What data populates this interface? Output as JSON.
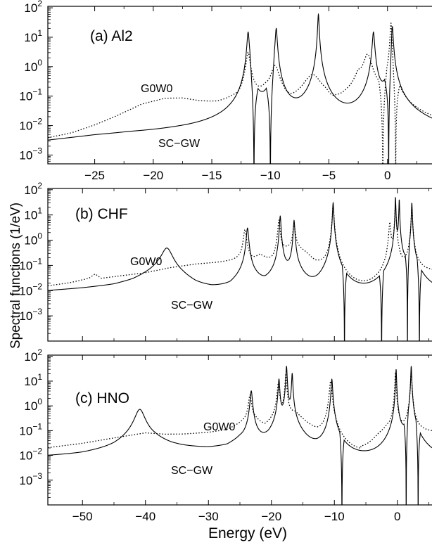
{
  "chart_data": [
    {
      "type": "line",
      "panel_label": "(a) Al2",
      "xlim": [
        -29,
        3.8
      ],
      "ylim_log10": [
        -3.3,
        2.05
      ],
      "y_scale": "log",
      "x_ticks": [
        -25,
        -20,
        -15,
        -10,
        -5,
        0
      ],
      "x_tick_labels": [
        "−25",
        "−20",
        "−15",
        "−10",
        "−5",
        "0"
      ],
      "y_ticks": [
        {
          "exp": "2"
        },
        {
          "exp": "1"
        },
        {
          "exp": "0"
        },
        {
          "exp": "−1"
        },
        {
          "exp": "−2"
        },
        {
          "exp": "−3"
        }
      ],
      "annotations": [
        "G0W0",
        "SC−GW"
      ],
      "series": [
        {
          "name": "SC−GW",
          "style": "solid",
          "peaks": [
            {
              "x": -11.9,
              "y": 15,
              "w": 0.08
            },
            {
              "x": -9.5,
              "y": 20,
              "w": 0.07
            },
            {
              "x": -5.9,
              "y": 60,
              "w": 0.05
            },
            {
              "x": -1.2,
              "y": 15,
              "w": 0.08
            },
            {
              "x": 0.4,
              "y": 30,
              "w": 0.06
            }
          ],
          "background": [
            [
              -29,
              0.0021
            ],
            [
              -27,
              0.0026
            ],
            [
              -25,
              0.0032
            ],
            [
              -22,
              0.0038
            ],
            [
              -18,
              0.004
            ],
            [
              -15,
              0.0038
            ],
            [
              -13.5,
              0.0035
            ],
            [
              -13,
              0.003
            ],
            [
              -12.3,
              0.0015
            ],
            [
              -11.6,
              0.0008
            ],
            [
              -10.5,
              0.0008
            ],
            [
              -9.8,
              0.0008
            ],
            [
              -9.2,
              0.001
            ],
            [
              -8,
              0.003
            ],
            [
              -7,
              0.002
            ],
            [
              -6.4,
              0.0015
            ],
            [
              -5.6,
              0.0015
            ],
            [
              -5,
              0.003
            ],
            [
              -4,
              0.003
            ],
            [
              -3,
              0.0025
            ],
            [
              -2,
              0.0015
            ],
            [
              -1.6,
              0.0008
            ],
            [
              -0.8,
              0.0006
            ],
            [
              0,
              0.0006
            ],
            [
              0.8,
              0.0008
            ],
            [
              1.5,
              0.003
            ],
            [
              3,
              0.0025
            ],
            [
              3.8,
              0.0022
            ]
          ],
          "zeros": [
            -11.4,
            -10.0,
            0.1
          ]
        },
        {
          "name": "G0W0",
          "style": "dotted",
          "peaks": [
            {
              "x": -11.9,
              "y": 3,
              "w": 0.15
            },
            {
              "x": -9.6,
              "y": 1.0,
              "w": 0.3
            },
            {
              "x": -6.4,
              "y": 0.5,
              "w": 0.7
            },
            {
              "x": -1.7,
              "y": 2.5,
              "w": 0.3
            },
            {
              "x": 0.3,
              "y": 30,
              "w": 0.06
            }
          ],
          "background": [
            [
              -29,
              0.0025
            ],
            [
              -27,
              0.004
            ],
            [
              -25,
              0.0085
            ],
            [
              -23,
              0.02
            ],
            [
              -21,
              0.05
            ],
            [
              -19,
              0.08
            ],
            [
              -17.5,
              0.08
            ],
            [
              -16,
              0.06
            ],
            [
              -14.5,
              0.05
            ],
            [
              -13.2,
              0.06
            ],
            [
              -12.6,
              0.04
            ],
            [
              -11,
              0.08
            ],
            [
              -10.4,
              0.12
            ],
            [
              -9,
              0.04
            ],
            [
              -8.3,
              0.003
            ],
            [
              -7.8,
              0.01
            ],
            [
              -5.2,
              0.03
            ],
            [
              -4.8,
              0.0015
            ],
            [
              -4.4,
              0.02
            ],
            [
              -3,
              0.15
            ],
            [
              -2.5,
              0.5
            ],
            [
              -1,
              0.05
            ],
            [
              -0.4,
              0.003
            ],
            [
              0,
              0.002
            ],
            [
              0.6,
              0.003
            ],
            [
              0.8,
              0.003
            ],
            [
              1.5,
              0.003
            ],
            [
              3.8,
              0.003
            ]
          ],
          "zeros": [
            -0.4,
            0.7
          ]
        }
      ]
    },
    {
      "type": "line",
      "panel_label": "(b) CHF",
      "xlim": [
        -55.5,
        5.5
      ],
      "ylim_log10": [
        -4.0,
        2.05
      ],
      "y_scale": "log",
      "x_ticks": [],
      "x_tick_labels": [],
      "y_ticks": [
        {
          "exp": "2"
        },
        {
          "exp": "1"
        },
        {
          "exp": "0"
        },
        {
          "exp": "−1"
        },
        {
          "exp": "−2"
        },
        {
          "exp": "−3"
        }
      ],
      "annotations": [
        "G0W0",
        "SC−GW"
      ],
      "series": [
        {
          "name": "SC−GW",
          "style": "solid",
          "peaks": [
            {
              "x": -36.6,
              "y": 0.45,
              "w": 0.8
            },
            {
              "x": -23.8,
              "y": 3,
              "w": 0.15
            },
            {
              "x": -18.6,
              "y": 9,
              "w": 0.1
            },
            {
              "x": -16.4,
              "y": 6,
              "w": 0.1
            },
            {
              "x": -10.2,
              "y": 30,
              "w": 0.08
            },
            {
              "x": -0.3,
              "y": 50,
              "w": 0.05
            },
            {
              "x": 0.3,
              "y": 40,
              "w": 0.05
            },
            {
              "x": 2.3,
              "y": 30,
              "w": 0.06
            }
          ],
          "background": [
            [
              -55.5,
              0.009
            ],
            [
              -50,
              0.011
            ],
            [
              -45,
              0.014
            ],
            [
              -42,
              0.02
            ],
            [
              -38,
              0.05
            ],
            [
              -34,
              0.02
            ],
            [
              -32,
              0.01
            ],
            [
              -29.5,
              0.0075
            ],
            [
              -26.5,
              0.009
            ],
            [
              -24.6,
              0.03
            ],
            [
              -22.5,
              0.02
            ],
            [
              -21,
              0.009
            ],
            [
              -19.3,
              0.02
            ],
            [
              -17.6,
              0.03
            ],
            [
              -15.5,
              0.03
            ],
            [
              -14,
              0.008
            ],
            [
              -12.5,
              0.002
            ],
            [
              -11,
              0.008
            ],
            [
              -9.7,
              0.008
            ],
            [
              -9,
              0.003
            ],
            [
              -8.6,
              0.0002
            ],
            [
              -2.8,
              0.0002
            ],
            [
              -1.8,
              0.0015
            ],
            [
              -0.6,
              0.01
            ],
            [
              0,
              0.005
            ],
            [
              0.9,
              0.003
            ],
            [
              1.5,
              0.004
            ],
            [
              2.8,
              0.003
            ],
            [
              3.4,
              0.002
            ],
            [
              5.5,
              0.002
            ]
          ],
          "zeros": [
            -8.4,
            -2.5,
            1.6,
            3.5
          ]
        },
        {
          "name": "G0W0",
          "style": "dotted",
          "peaks": [
            {
              "x": -24.2,
              "y": 2.5,
              "w": 0.2
            },
            {
              "x": -18.8,
              "y": 6,
              "w": 0.15
            },
            {
              "x": -16.4,
              "y": 4,
              "w": 0.15
            },
            {
              "x": -10.2,
              "y": 25,
              "w": 0.1
            },
            {
              "x": -1.2,
              "y": 5,
              "w": 0.12
            },
            {
              "x": -0.3,
              "y": 30,
              "w": 0.07
            },
            {
              "x": 2.3,
              "y": 20,
              "w": 0.08
            }
          ],
          "background": [
            [
              -55.5,
              0.015
            ],
            [
              -52,
              0.02
            ],
            [
              -49,
              0.03
            ],
            [
              -48,
              0.045
            ],
            [
              -47,
              0.03
            ],
            [
              -45,
              0.035
            ],
            [
              -40,
              0.05
            ],
            [
              -36,
              0.08
            ],
            [
              -32,
              0.11
            ],
            [
              -28,
              0.13
            ],
            [
              -25,
              0.16
            ],
            [
              -23,
              0.15
            ],
            [
              -21.8,
              0.25
            ],
            [
              -21,
              0.18
            ],
            [
              -19.5,
              0.1
            ],
            [
              -18,
              0.4
            ],
            [
              -16,
              0.55
            ],
            [
              -14.5,
              0.3
            ],
            [
              -13,
              0.12
            ],
            [
              -11.5,
              0.08
            ],
            [
              -10,
              0.05
            ],
            [
              -9.6,
              0.01
            ],
            [
              -9.3,
              0.001
            ],
            [
              -8.8,
              0.0002
            ],
            [
              -2.2,
              0.0002
            ],
            [
              -1.8,
              0.001
            ],
            [
              -1.6,
              0.05
            ],
            [
              -0.8,
              0.1
            ],
            [
              0.5,
              0.02
            ],
            [
              1.5,
              0.05
            ],
            [
              3,
              0.05
            ],
            [
              3.8,
              0.05
            ],
            [
              5.5,
              0.05
            ]
          ],
          "zeros": []
        }
      ]
    },
    {
      "type": "line",
      "panel_label": "(c) HNO",
      "xlim": [
        -55.5,
        5.5
      ],
      "ylim_log10": [
        -4.0,
        2.05
      ],
      "y_scale": "log",
      "x_ticks": [
        -50,
        -40,
        -30,
        -20,
        -10,
        0
      ],
      "x_tick_labels": [
        "−50",
        "−40",
        "−30",
        "−20",
        "−10",
        "0"
      ],
      "y_ticks": [
        {
          "exp": "2"
        },
        {
          "exp": "1"
        },
        {
          "exp": "0"
        },
        {
          "exp": "−1"
        },
        {
          "exp": "−2"
        },
        {
          "exp": "−3"
        }
      ],
      "annotations": [
        "G0W0",
        "SC−GW"
      ],
      "series": [
        {
          "name": "SC−GW",
          "style": "solid",
          "peaks": [
            {
              "x": -40.9,
              "y": 0.7,
              "w": 0.7
            },
            {
              "x": -23.2,
              "y": 4,
              "w": 0.15
            },
            {
              "x": -18.8,
              "y": 12,
              "w": 0.1
            },
            {
              "x": -17.6,
              "y": 40,
              "w": 0.08
            },
            {
              "x": -16.7,
              "y": 20,
              "w": 0.08
            },
            {
              "x": -10.4,
              "y": 12,
              "w": 0.1
            },
            {
              "x": -0.2,
              "y": 30,
              "w": 0.06
            },
            {
              "x": 2.2,
              "y": 40,
              "w": 0.06
            }
          ],
          "background": [
            [
              -55.5,
              0.008
            ],
            [
              -50,
              0.009
            ],
            [
              -45,
              0.013
            ],
            [
              -43,
              0.02
            ],
            [
              -38.5,
              0.03
            ],
            [
              -36,
              0.02
            ],
            [
              -34,
              0.017
            ],
            [
              -30,
              0.014
            ],
            [
              -27,
              0.015
            ],
            [
              -25,
              0.03
            ],
            [
              -22,
              0.02
            ],
            [
              -20.5,
              0.01
            ],
            [
              -19.4,
              0.03
            ],
            [
              -18.2,
              0.04
            ],
            [
              -17.2,
              0.04
            ],
            [
              -16,
              0.03
            ],
            [
              -14,
              0.004
            ],
            [
              -12.8,
              0.002
            ],
            [
              -11.5,
              0.006
            ],
            [
              -10,
              0.01
            ],
            [
              -9.4,
              0.001
            ],
            [
              -9,
              0.0002
            ],
            [
              -3.4,
              0.0002
            ],
            [
              -2.8,
              0.0005
            ],
            [
              -1.2,
              0.008
            ],
            [
              0.5,
              0.01
            ],
            [
              1.2,
              0.003
            ],
            [
              1.6,
              0.002
            ],
            [
              2.8,
              0.002
            ],
            [
              3.4,
              0.002
            ],
            [
              5.5,
              0.002
            ]
          ],
          "zeros": [
            -8.8,
            1.4,
            3.3
          ]
        },
        {
          "name": "G0W0",
          "style": "dotted",
          "peaks": [
            {
              "x": -23.4,
              "y": 2.5,
              "w": 0.2
            },
            {
              "x": -18.9,
              "y": 8,
              "w": 0.15
            },
            {
              "x": -17.7,
              "y": 20,
              "w": 0.1
            },
            {
              "x": -10.6,
              "y": 10,
              "w": 0.15
            },
            {
              "x": -0.3,
              "y": 20,
              "w": 0.08
            },
            {
              "x": 2.2,
              "y": 25,
              "w": 0.08
            }
          ],
          "background": [
            [
              -55.5,
              0.02
            ],
            [
              -50,
              0.03
            ],
            [
              -46,
              0.045
            ],
            [
              -43,
              0.06
            ],
            [
              -40,
              0.08
            ],
            [
              -37,
              0.07
            ],
            [
              -34,
              0.07
            ],
            [
              -30,
              0.08
            ],
            [
              -27,
              0.1
            ],
            [
              -24.5,
              0.2
            ],
            [
              -22.5,
              0.25
            ],
            [
              -21,
              0.12
            ],
            [
              -19.8,
              0.2
            ],
            [
              -18.3,
              0.3
            ],
            [
              -16.2,
              0.5
            ],
            [
              -14.5,
              0.2
            ],
            [
              -12.5,
              0.07
            ],
            [
              -11.2,
              0.05
            ],
            [
              -10,
              0.03
            ],
            [
              -9.6,
              0.005
            ],
            [
              -9.1,
              0.0002
            ],
            [
              -5.8,
              0.0002
            ],
            [
              -5.8,
              0.005
            ],
            [
              -4.5,
              0.015
            ],
            [
              -3,
              0.05
            ],
            [
              -1.6,
              0.1
            ],
            [
              -0.8,
              0.06
            ],
            [
              0.6,
              0.05
            ],
            [
              1.5,
              0.08
            ],
            [
              3.5,
              0.08
            ],
            [
              5.5,
              0.08
            ]
          ],
          "zeros": []
        }
      ]
    }
  ],
  "ylabel": "Spectral functions (1/eV)",
  "xlabel": "Energy (eV)",
  "y_tick_base": "10"
}
